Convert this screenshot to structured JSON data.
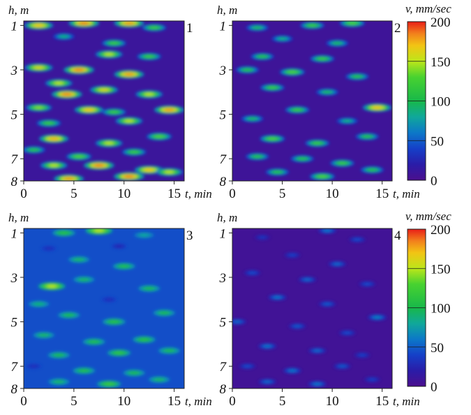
{
  "colorbar": {
    "label": "v, mm/sec",
    "ticks": [
      0,
      50,
      100,
      150,
      200
    ],
    "range": [
      0,
      200
    ],
    "stops": [
      {
        "v": 0,
        "color": "#4b0f8e"
      },
      {
        "v": 20,
        "color": "#2a1ca8"
      },
      {
        "v": 40,
        "color": "#1540c8"
      },
      {
        "v": 60,
        "color": "#0c78c8"
      },
      {
        "v": 80,
        "color": "#10a89a"
      },
      {
        "v": 100,
        "color": "#18b84a"
      },
      {
        "v": 130,
        "color": "#48d230"
      },
      {
        "v": 150,
        "color": "#bce61a"
      },
      {
        "v": 170,
        "color": "#f2c414"
      },
      {
        "v": 185,
        "color": "#f2801c"
      },
      {
        "v": 200,
        "color": "#e81e18"
      }
    ]
  },
  "chart_data": [
    {
      "type": "heatmap",
      "panel": "1",
      "xlabel": "t, min",
      "ylabel": "h, m",
      "xticks": [
        0,
        5,
        10,
        15
      ],
      "yticks": [
        1,
        3,
        5,
        7,
        8
      ],
      "xlim": [
        0,
        16
      ],
      "ylim": [
        8,
        0.8
      ],
      "z_unit": "mm/sec",
      "grid": false,
      "background_value": 10,
      "features": [
        {
          "t": 1.5,
          "h": 1.0,
          "v": 170
        },
        {
          "t": 6.0,
          "h": 0.9,
          "v": 185
        },
        {
          "t": 10.5,
          "h": 0.9,
          "v": 180
        },
        {
          "t": 13.0,
          "h": 1.1,
          "v": 120
        },
        {
          "t": 4.0,
          "h": 1.5,
          "v": 90
        },
        {
          "t": 9.0,
          "h": 1.8,
          "v": 120
        },
        {
          "t": 8.5,
          "h": 2.3,
          "v": 150
        },
        {
          "t": 12.5,
          "h": 2.4,
          "v": 120
        },
        {
          "t": 1.5,
          "h": 2.9,
          "v": 160
        },
        {
          "t": 5.5,
          "h": 3.0,
          "v": 185
        },
        {
          "t": 10.5,
          "h": 3.2,
          "v": 180
        },
        {
          "t": 3.5,
          "h": 3.6,
          "v": 150
        },
        {
          "t": 4.3,
          "h": 4.1,
          "v": 185
        },
        {
          "t": 8.0,
          "h": 3.9,
          "v": 160
        },
        {
          "t": 12.5,
          "h": 4.1,
          "v": 150
        },
        {
          "t": 1.5,
          "h": 4.7,
          "v": 140
        },
        {
          "t": 6.5,
          "h": 4.8,
          "v": 170
        },
        {
          "t": 9.0,
          "h": 4.9,
          "v": 120
        },
        {
          "t": 14.5,
          "h": 4.8,
          "v": 180
        },
        {
          "t": 2.5,
          "h": 5.4,
          "v": 120
        },
        {
          "t": 10.5,
          "h": 5.3,
          "v": 150
        },
        {
          "t": 3.0,
          "h": 6.1,
          "v": 175
        },
        {
          "t": 8.5,
          "h": 6.3,
          "v": 150
        },
        {
          "t": 13.5,
          "h": 6.0,
          "v": 130
        },
        {
          "t": 1.0,
          "h": 6.6,
          "v": 110
        },
        {
          "t": 5.5,
          "h": 6.9,
          "v": 130
        },
        {
          "t": 11.0,
          "h": 6.7,
          "v": 120
        },
        {
          "t": 3.0,
          "h": 7.3,
          "v": 150
        },
        {
          "t": 7.5,
          "h": 7.3,
          "v": 185
        },
        {
          "t": 12.5,
          "h": 7.5,
          "v": 170
        },
        {
          "t": 4.5,
          "h": 7.9,
          "v": 180
        },
        {
          "t": 10.5,
          "h": 7.8,
          "v": 185
        },
        {
          "t": 14.5,
          "h": 7.6,
          "v": 150
        }
      ]
    },
    {
      "type": "heatmap",
      "panel": "2",
      "xlabel": "t, min",
      "ylabel": "h, m",
      "xticks": [
        0,
        5,
        10,
        15
      ],
      "yticks": [
        1,
        3,
        5,
        7,
        8
      ],
      "xlim": [
        0,
        16
      ],
      "ylim": [
        8,
        0.8
      ],
      "z_unit": "mm/sec",
      "grid": false,
      "background_value": 8,
      "features": [
        {
          "t": 8.0,
          "h": 1.0,
          "v": 120
        },
        {
          "t": 12.0,
          "h": 0.9,
          "v": 130
        },
        {
          "t": 2.5,
          "h": 1.1,
          "v": 100
        },
        {
          "t": 5.0,
          "h": 1.6,
          "v": 90
        },
        {
          "t": 10.5,
          "h": 1.8,
          "v": 100
        },
        {
          "t": 3.0,
          "h": 2.4,
          "v": 110
        },
        {
          "t": 9.0,
          "h": 2.5,
          "v": 120
        },
        {
          "t": 1.5,
          "h": 3.0,
          "v": 110
        },
        {
          "t": 6.0,
          "h": 3.1,
          "v": 130
        },
        {
          "t": 12.5,
          "h": 3.3,
          "v": 110
        },
        {
          "t": 4.0,
          "h": 3.8,
          "v": 120
        },
        {
          "t": 9.5,
          "h": 4.0,
          "v": 100
        },
        {
          "t": 14.5,
          "h": 4.7,
          "v": 170
        },
        {
          "t": 6.5,
          "h": 4.8,
          "v": 120
        },
        {
          "t": 2.0,
          "h": 5.2,
          "v": 100
        },
        {
          "t": 11.5,
          "h": 5.3,
          "v": 90
        },
        {
          "t": 4.0,
          "h": 6.1,
          "v": 130
        },
        {
          "t": 8.5,
          "h": 6.3,
          "v": 120
        },
        {
          "t": 13.5,
          "h": 6.0,
          "v": 110
        },
        {
          "t": 2.5,
          "h": 6.9,
          "v": 110
        },
        {
          "t": 7.0,
          "h": 7.0,
          "v": 110
        },
        {
          "t": 11.0,
          "h": 7.2,
          "v": 120
        },
        {
          "t": 4.5,
          "h": 7.6,
          "v": 110
        },
        {
          "t": 9.0,
          "h": 7.8,
          "v": 130
        },
        {
          "t": 14.0,
          "h": 7.5,
          "v": 110
        }
      ]
    },
    {
      "type": "heatmap",
      "panel": "3",
      "xlabel": "t, min",
      "ylabel": "h, m",
      "xticks": [
        0,
        5,
        10,
        15
      ],
      "yticks": [
        1,
        3,
        5,
        7,
        8
      ],
      "xlim": [
        0,
        16
      ],
      "ylim": [
        8,
        0.8
      ],
      "z_unit": "mm/sec",
      "grid": false,
      "background_value": 45,
      "features": [
        {
          "t": 7.5,
          "h": 0.9,
          "v": 150
        },
        {
          "t": 4.0,
          "h": 1.0,
          "v": 110
        },
        {
          "t": 12.0,
          "h": 1.1,
          "v": 80
        },
        {
          "t": 2.5,
          "h": 1.7,
          "v": 30
        },
        {
          "t": 9.5,
          "h": 1.6,
          "v": 25
        },
        {
          "t": 5.5,
          "h": 2.2,
          "v": 95
        },
        {
          "t": 10.0,
          "h": 2.5,
          "v": 105
        },
        {
          "t": 2.8,
          "h": 3.4,
          "v": 150
        },
        {
          "t": 6.0,
          "h": 3.1,
          "v": 95
        },
        {
          "t": 12.5,
          "h": 3.5,
          "v": 100
        },
        {
          "t": 8.5,
          "h": 4.0,
          "v": 30
        },
        {
          "t": 1.5,
          "h": 4.2,
          "v": 90
        },
        {
          "t": 4.5,
          "h": 4.7,
          "v": 100
        },
        {
          "t": 9.0,
          "h": 5.0,
          "v": 110
        },
        {
          "t": 14.0,
          "h": 4.6,
          "v": 100
        },
        {
          "t": 2.0,
          "h": 5.6,
          "v": 95
        },
        {
          "t": 7.0,
          "h": 5.9,
          "v": 105
        },
        {
          "t": 12.0,
          "h": 5.8,
          "v": 110
        },
        {
          "t": 3.5,
          "h": 6.5,
          "v": 100
        },
        {
          "t": 9.5,
          "h": 6.4,
          "v": 115
        },
        {
          "t": 14.5,
          "h": 6.3,
          "v": 100
        },
        {
          "t": 1.0,
          "h": 7.0,
          "v": 30
        },
        {
          "t": 6.0,
          "h": 7.2,
          "v": 105
        },
        {
          "t": 11.0,
          "h": 7.3,
          "v": 100
        },
        {
          "t": 3.5,
          "h": 7.7,
          "v": 95
        },
        {
          "t": 8.5,
          "h": 7.8,
          "v": 120
        },
        {
          "t": 13.5,
          "h": 7.6,
          "v": 95
        }
      ]
    },
    {
      "type": "heatmap",
      "panel": "4",
      "xlabel": "t, min",
      "ylabel": "h, m",
      "xticks": [
        0,
        5,
        10,
        15
      ],
      "yticks": [
        1,
        3,
        5,
        7,
        8
      ],
      "xlim": [
        0,
        16
      ],
      "ylim": [
        8,
        0.8
      ],
      "z_unit": "mm/sec",
      "grid": false,
      "background_value": 6,
      "features": [
        {
          "t": 9.5,
          "h": 0.9,
          "v": 60
        },
        {
          "t": 3.0,
          "h": 1.2,
          "v": 35
        },
        {
          "t": 12.5,
          "h": 1.3,
          "v": 45
        },
        {
          "t": 6.0,
          "h": 2.0,
          "v": 40
        },
        {
          "t": 10.5,
          "h": 2.4,
          "v": 55
        },
        {
          "t": 2.0,
          "h": 2.8,
          "v": 45
        },
        {
          "t": 7.5,
          "h": 3.1,
          "v": 55
        },
        {
          "t": 13.5,
          "h": 3.3,
          "v": 45
        },
        {
          "t": 4.5,
          "h": 3.9,
          "v": 60
        },
        {
          "t": 9.5,
          "h": 4.2,
          "v": 50
        },
        {
          "t": 14.5,
          "h": 4.8,
          "v": 65
        },
        {
          "t": 0.5,
          "h": 5.0,
          "v": 55
        },
        {
          "t": 6.5,
          "h": 5.2,
          "v": 50
        },
        {
          "t": 11.5,
          "h": 5.5,
          "v": 45
        },
        {
          "t": 3.5,
          "h": 6.1,
          "v": 60
        },
        {
          "t": 8.5,
          "h": 6.3,
          "v": 55
        },
        {
          "t": 13.0,
          "h": 6.5,
          "v": 40
        },
        {
          "t": 1.5,
          "h": 7.0,
          "v": 45
        },
        {
          "t": 6.0,
          "h": 7.2,
          "v": 60
        },
        {
          "t": 11.0,
          "h": 7.0,
          "v": 50
        },
        {
          "t": 3.5,
          "h": 7.7,
          "v": 55
        },
        {
          "t": 8.5,
          "h": 7.8,
          "v": 60
        },
        {
          "t": 14.0,
          "h": 7.6,
          "v": 40
        }
      ]
    }
  ]
}
